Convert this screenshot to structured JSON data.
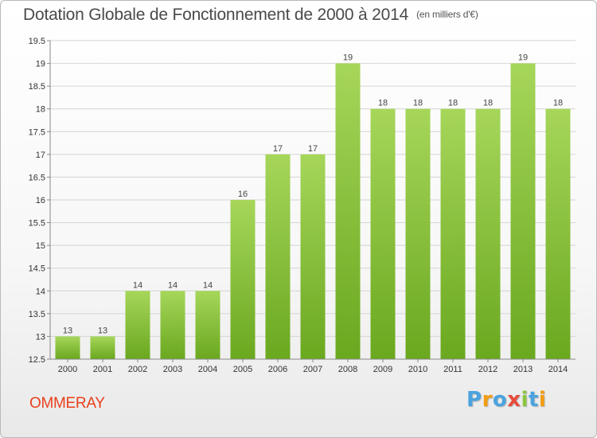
{
  "header": {
    "title": "Dotation Globale de Fonctionnement de 2000 à 2014",
    "subtitle": "(en milliers d'€)"
  },
  "footer": {
    "commune": "OMMERAY",
    "logo_text": "Proxiti"
  },
  "colors": {
    "bar_light": "#a6d65a",
    "bar_dark": "#6aa81f",
    "commune": "#e8401c",
    "logo_letters": [
      "#4aa3df",
      "#f39c12",
      "#4aa3df",
      "#e74c3c",
      "#8cc63f",
      "#4aa3df",
      "#f39c12"
    ]
  },
  "chart_data": {
    "type": "bar",
    "categories": [
      "2000",
      "2001",
      "2002",
      "2003",
      "2004",
      "2005",
      "2006",
      "2007",
      "2008",
      "2009",
      "2010",
      "2011",
      "2012",
      "2013",
      "2014"
    ],
    "values": [
      13,
      13,
      14,
      14,
      14,
      16,
      17,
      17,
      19,
      18,
      18,
      18,
      18,
      19,
      18
    ],
    "bar_heights": [
      13,
      13,
      14,
      14,
      14,
      16,
      17,
      17,
      19,
      18,
      18,
      18,
      18,
      19,
      18
    ],
    "data_labels": [
      "13",
      "13",
      "14",
      "14",
      "14",
      "16",
      "17",
      "17",
      "19",
      "18",
      "18",
      "18",
      "18",
      "19",
      "18"
    ],
    "yticks": [
      "12.5",
      "13",
      "13.5",
      "14",
      "14.5",
      "15",
      "15.5",
      "16",
      "16.5",
      "17",
      "17.5",
      "18",
      "18.5",
      "19",
      "19.5"
    ],
    "ylim": [
      12.5,
      19.5
    ],
    "grid": true,
    "legend": "none"
  }
}
